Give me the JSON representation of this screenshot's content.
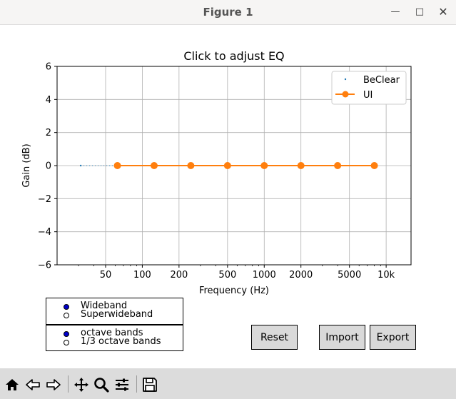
{
  "window": {
    "title": "Figure 1",
    "controls": [
      "minimize-icon",
      "maximize-icon",
      "close-icon"
    ]
  },
  "chart_data": {
    "type": "line",
    "title": "Click to adjust EQ",
    "xlabel": "Frequency (Hz)",
    "ylabel": "Gain (dB)",
    "xscale": "log",
    "xlim": [
      20,
      16000
    ],
    "ylim": [
      -6,
      6
    ],
    "grid": true,
    "legend_position": "top-right",
    "x_ticks": [
      50,
      100,
      200,
      500,
      1000,
      2000,
      5000,
      10000
    ],
    "x_tick_labels": [
      "50",
      "100",
      "200",
      "500",
      "1000",
      "2000",
      "5000",
      "10k"
    ],
    "y_ticks": [
      6,
      4,
      2,
      0,
      -2,
      -4,
      -6
    ],
    "y_tick_labels": [
      "6",
      "4",
      "2",
      "0",
      "−2",
      "−4",
      "−6"
    ],
    "series": [
      {
        "name": "BeClear",
        "style": "points-dotted",
        "color": "#1f77b4",
        "x": [
          31.25,
          62.5,
          125,
          250,
          500,
          1000,
          2000,
          4000,
          8000
        ],
        "y": [
          0,
          0,
          0,
          0,
          0,
          0,
          0,
          0,
          0
        ]
      },
      {
        "name": "UI",
        "style": "line-markers",
        "color": "#ff7f0e",
        "x": [
          62.5,
          125,
          250,
          500,
          1000,
          2000,
          4000,
          8000
        ],
        "y": [
          0,
          0,
          0,
          0,
          0,
          0,
          0,
          0
        ]
      }
    ]
  },
  "controls": {
    "bandwidth": {
      "options": [
        "Wideband",
        "Superwideband"
      ],
      "selected": "Wideband"
    },
    "band_mode": {
      "options": [
        "octave bands",
        "1/3 octave bands"
      ],
      "selected": "octave bands"
    },
    "reset_label": "Reset",
    "import_label": "Import",
    "export_label": "Export"
  },
  "toolbar": {
    "icons": [
      "home-icon",
      "back-icon",
      "forward-icon",
      "pan-icon",
      "zoom-icon",
      "subplots-icon",
      "save-icon"
    ]
  }
}
